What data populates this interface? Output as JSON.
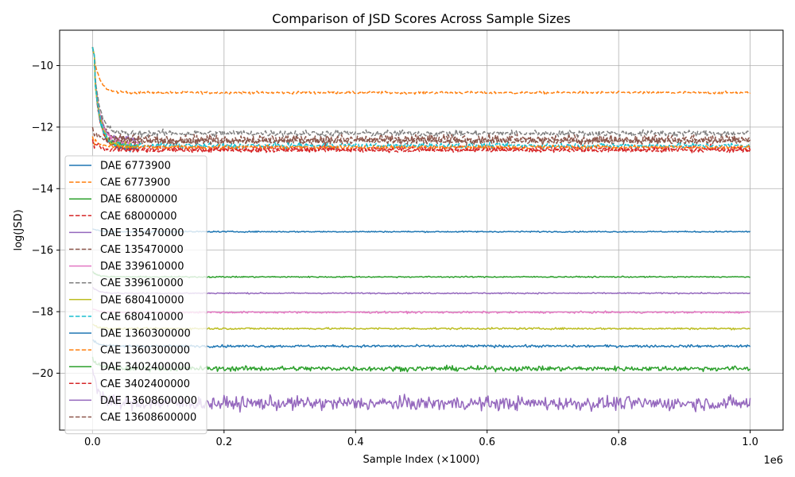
{
  "chart_data": {
    "type": "line",
    "title": "Comparison of JSD Scores Across Sample Sizes",
    "xlabel": "Sample Index (×1000)",
    "ylabel": "log(JSD)",
    "x_offset_text": "1e6",
    "xlim": [
      -50000,
      1050000
    ],
    "ylim": [
      -21.85,
      -8.85
    ],
    "x_ticks": [
      0,
      200000,
      400000,
      600000,
      800000,
      1000000
    ],
    "x_tick_labels": [
      "0.0",
      "0.2",
      "0.4",
      "0.6",
      "0.8",
      "1.0"
    ],
    "y_ticks": [
      -20,
      -18,
      -16,
      -14,
      -12,
      -10
    ],
    "y_tick_labels": [
      "−20",
      "−18",
      "−16",
      "−14",
      "−12",
      "−10"
    ],
    "grid": true,
    "legend_position": "lower-left",
    "x": [
      0,
      1000000
    ],
    "series": [
      {
        "name": "DAE 6773900",
        "color": "#1f77b4",
        "dash": "solid",
        "start": -9.4,
        "plateau": -12.7,
        "end_x": 70000,
        "noise": 0.04
      },
      {
        "name": "CAE 6773900",
        "color": "#ff7f0e",
        "dash": "dashed",
        "start": -9.4,
        "plateau": -10.88,
        "end_x": 1000000,
        "noise": 0.02
      },
      {
        "name": "DAE 68000000",
        "color": "#2ca02c",
        "dash": "solid",
        "start": -9.4,
        "plateau": -12.6,
        "end_x": 70000,
        "noise": 0.05
      },
      {
        "name": "CAE 68000000",
        "color": "#d62728",
        "dash": "dashed",
        "start": -9.4,
        "plateau": -12.7,
        "end_x": 1000000,
        "noise": 0.05
      },
      {
        "name": "DAE 135470000",
        "color": "#9467bd",
        "dash": "solid",
        "start": -9.4,
        "plateau": -12.4,
        "end_x": 70000,
        "noise": 0.05
      },
      {
        "name": "CAE 135470000",
        "color": "#8c564b",
        "dash": "dashed",
        "start": -9.4,
        "plateau": -12.4,
        "end_x": 1000000,
        "noise": 0.08
      },
      {
        "name": "DAE 339610000",
        "color": "#e377c2",
        "dash": "solid",
        "start": -9.4,
        "plateau": -12.5,
        "end_x": 70000,
        "noise": 0.05
      },
      {
        "name": "CAE 339610000",
        "color": "#7f7f7f",
        "dash": "dashed",
        "start": -9.4,
        "plateau": -12.2,
        "end_x": 1000000,
        "noise": 0.05
      },
      {
        "name": "DAE 680410000",
        "color": "#bcbd22",
        "dash": "solid",
        "start": -9.4,
        "plateau": -12.6,
        "end_x": 70000,
        "noise": 0.05
      },
      {
        "name": "CAE 680410000",
        "color": "#17becf",
        "dash": "dashed",
        "start": -9.4,
        "plateau": -12.6,
        "end_x": 1000000,
        "noise": 0.04
      },
      {
        "name": "DAE 1360300000",
        "color": "#1f77b4",
        "dash": "solid",
        "start": -15.3,
        "plateau": -15.4,
        "end_x": 1000000,
        "noise": 0.01
      },
      {
        "name": "CAE 1360300000",
        "color": "#ff7f0e",
        "dash": "dashed",
        "start": -12.3,
        "plateau": -12.65,
        "end_x": 1000000,
        "noise": 0.03
      },
      {
        "name": "DAE 3402400000",
        "color": "#2ca02c",
        "dash": "solid",
        "start": -16.7,
        "plateau": -16.87,
        "end_x": 1000000,
        "noise": 0.01
      },
      {
        "name": "CAE 3402400000",
        "color": "#d62728",
        "dash": "dashed",
        "start": -12.4,
        "plateau": -12.75,
        "end_x": 1000000,
        "noise": 0.03
      },
      {
        "name": "DAE 13608600000",
        "color": "#9467bd",
        "dash": "solid",
        "start": -17.2,
        "plateau": -17.4,
        "end_x": 1000000,
        "noise": 0.01
      },
      {
        "name": "CAE 13608600000",
        "color": "#8c564b",
        "dash": "dashed",
        "start": -12.0,
        "plateau": -12.45,
        "end_x": 1000000,
        "noise": 0.05
      },
      {
        "name": "",
        "color": "#e377c2",
        "dash": "solid",
        "start": -17.9,
        "plateau": -18.02,
        "end_x": 1000000,
        "noise": 0.015
      },
      {
        "name": "",
        "color": "#bcbd22",
        "dash": "solid",
        "start": -18.4,
        "plateau": -18.55,
        "end_x": 1000000,
        "noise": 0.015
      },
      {
        "name": "",
        "color": "#1f77b4",
        "dash": "solid",
        "start": -18.9,
        "plateau": -19.12,
        "end_x": 1000000,
        "noise": 0.02
      },
      {
        "name": "",
        "color": "#2ca02c",
        "dash": "solid",
        "start": -19.5,
        "plateau": -19.85,
        "end_x": 1000000,
        "noise": 0.04
      },
      {
        "name": "",
        "color": "#9467bd",
        "dash": "solid",
        "start": -19.8,
        "plateau": -20.98,
        "end_x": 1000000,
        "noise": 0.11
      }
    ]
  }
}
